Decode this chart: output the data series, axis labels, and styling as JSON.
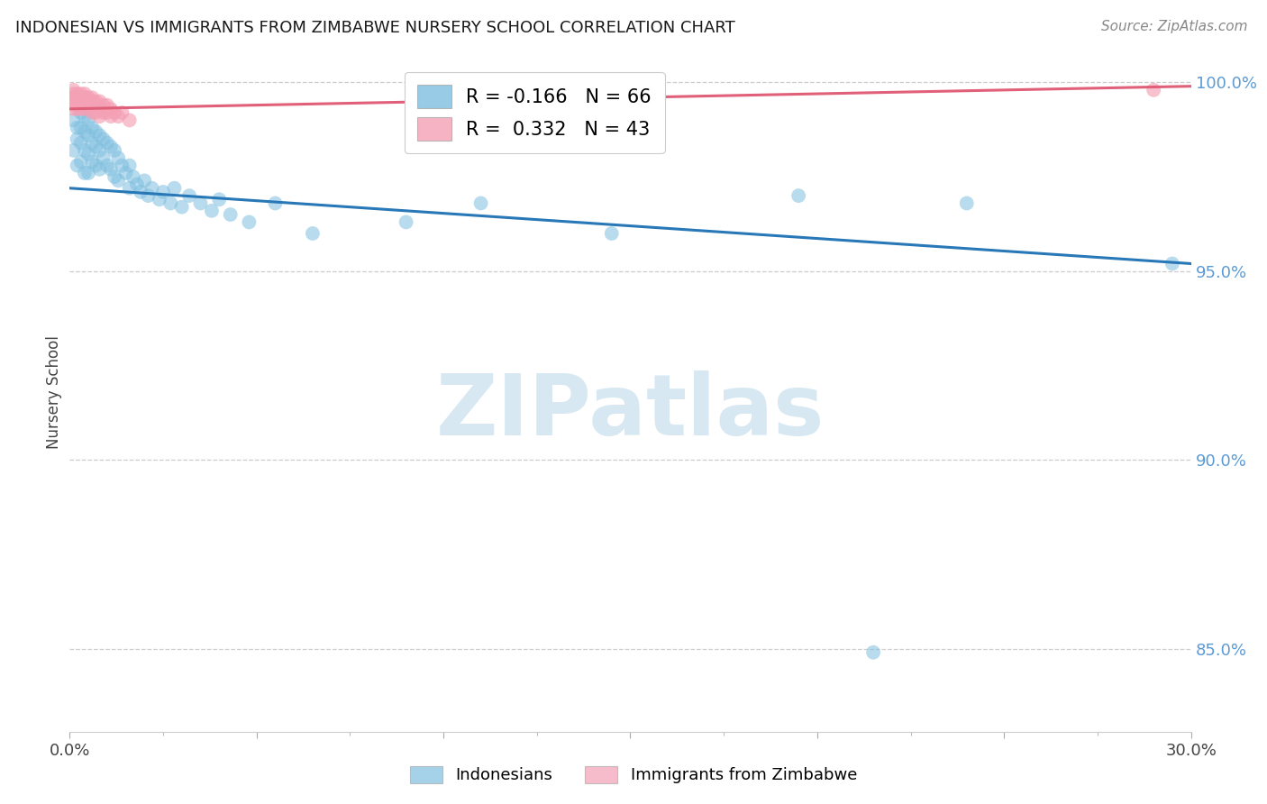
{
  "title": "INDONESIAN VS IMMIGRANTS FROM ZIMBABWE NURSERY SCHOOL CORRELATION CHART",
  "source": "Source: ZipAtlas.com",
  "ylabel": "Nursery School",
  "x_min": 0.0,
  "x_max": 0.3,
  "y_min": 0.828,
  "y_max": 1.008,
  "y_ticks": [
    0.85,
    0.9,
    0.95,
    1.0
  ],
  "y_tick_labels": [
    "85.0%",
    "90.0%",
    "95.0%",
    "100.0%"
  ],
  "legend_r1": "R = -0.166",
  "legend_n1": "N = 66",
  "legend_r2": "R =  0.332",
  "legend_n2": "N = 43",
  "blue_color": "#7fbfdf",
  "pink_color": "#f4a0b5",
  "blue_line_color": "#2878b8",
  "pink_line_color": "#e0607a",
  "right_axis_color": "#5b9bd5",
  "watermark_color": "#d0e4f0",
  "indonesians_x": [
    0.001,
    0.001,
    0.002,
    0.002,
    0.002,
    0.003,
    0.003,
    0.003,
    0.003,
    0.004,
    0.004,
    0.004,
    0.004,
    0.005,
    0.005,
    0.005,
    0.005,
    0.006,
    0.006,
    0.006,
    0.007,
    0.007,
    0.007,
    0.008,
    0.008,
    0.008,
    0.009,
    0.009,
    0.01,
    0.01,
    0.011,
    0.011,
    0.012,
    0.012,
    0.013,
    0.013,
    0.014,
    0.015,
    0.016,
    0.016,
    0.017,
    0.018,
    0.019,
    0.02,
    0.021,
    0.022,
    0.024,
    0.025,
    0.027,
    0.028,
    0.03,
    0.032,
    0.035,
    0.038,
    0.04,
    0.043,
    0.048,
    0.055,
    0.065,
    0.09,
    0.11,
    0.145,
    0.195,
    0.215,
    0.24,
    0.295
  ],
  "indonesians_y": [
    0.99,
    0.982,
    0.988,
    0.985,
    0.978,
    0.992,
    0.988,
    0.984,
    0.979,
    0.991,
    0.987,
    0.982,
    0.976,
    0.99,
    0.986,
    0.981,
    0.976,
    0.988,
    0.984,
    0.979,
    0.987,
    0.983,
    0.978,
    0.986,
    0.982,
    0.977,
    0.985,
    0.98,
    0.984,
    0.978,
    0.983,
    0.977,
    0.982,
    0.975,
    0.98,
    0.974,
    0.978,
    0.976,
    0.978,
    0.972,
    0.975,
    0.973,
    0.971,
    0.974,
    0.97,
    0.972,
    0.969,
    0.971,
    0.968,
    0.972,
    0.967,
    0.97,
    0.968,
    0.966,
    0.969,
    0.965,
    0.963,
    0.968,
    0.96,
    0.963,
    0.968,
    0.96,
    0.97,
    0.849,
    0.968,
    0.952
  ],
  "zimbabwe_x": [
    0.001,
    0.001,
    0.001,
    0.001,
    0.001,
    0.002,
    0.002,
    0.002,
    0.002,
    0.002,
    0.003,
    0.003,
    0.003,
    0.003,
    0.003,
    0.004,
    0.004,
    0.004,
    0.004,
    0.005,
    0.005,
    0.005,
    0.006,
    0.006,
    0.006,
    0.006,
    0.007,
    0.007,
    0.007,
    0.008,
    0.008,
    0.008,
    0.009,
    0.009,
    0.01,
    0.01,
    0.011,
    0.011,
    0.012,
    0.013,
    0.014,
    0.016,
    0.29
  ],
  "zimbabwe_y": [
    0.998,
    0.997,
    0.996,
    0.995,
    0.993,
    0.997,
    0.996,
    0.995,
    0.994,
    0.993,
    0.997,
    0.996,
    0.995,
    0.994,
    0.993,
    0.997,
    0.996,
    0.994,
    0.993,
    0.996,
    0.995,
    0.993,
    0.996,
    0.995,
    0.994,
    0.992,
    0.995,
    0.994,
    0.992,
    0.995,
    0.993,
    0.991,
    0.994,
    0.992,
    0.994,
    0.992,
    0.993,
    0.991,
    0.992,
    0.991,
    0.992,
    0.99,
    0.998
  ],
  "blue_trendline_x": [
    0.0,
    0.3
  ],
  "blue_trendline_y": [
    0.972,
    0.952
  ],
  "pink_trendline_x": [
    0.0,
    0.3
  ],
  "pink_trendline_y": [
    0.993,
    0.999
  ]
}
